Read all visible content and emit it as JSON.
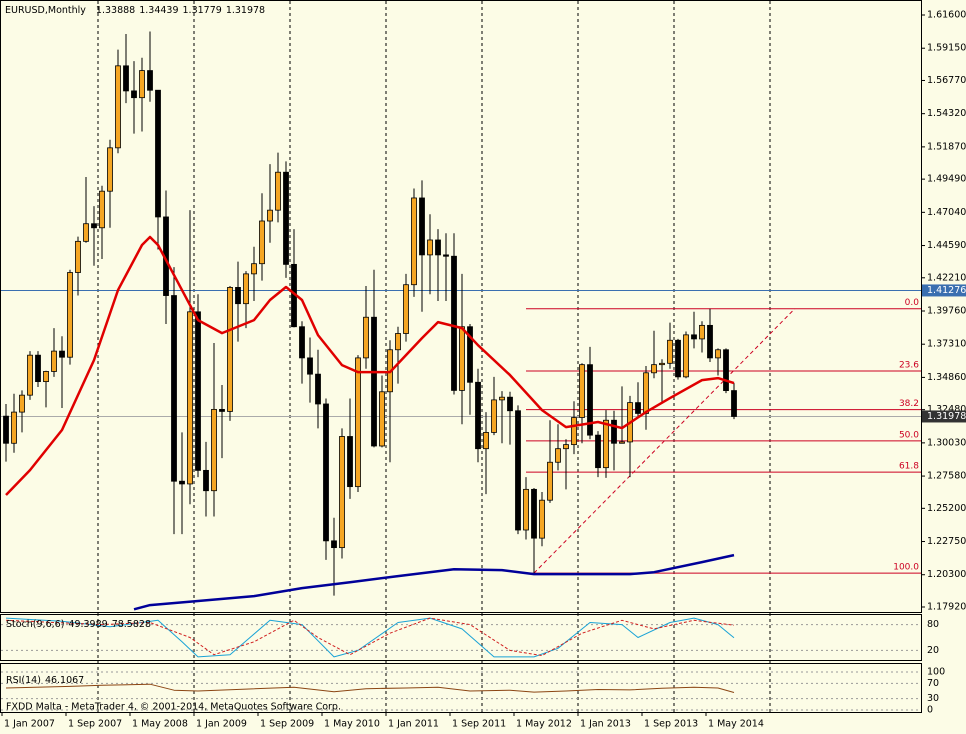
{
  "chart_data": [
    {
      "type": "candlestick",
      "title": "EURUSD,Monthly",
      "categories": [
        "1 Jan 2007",
        null,
        null,
        null,
        null,
        null,
        null,
        null,
        "1 Sep 2007",
        null,
        null,
        null,
        null,
        null,
        null,
        null,
        "1 May 2008",
        null,
        null,
        null,
        null,
        null,
        null,
        null,
        "1 Jan 2009",
        null,
        null,
        null,
        null,
        null,
        null,
        null,
        "1 Sep 2009",
        null,
        null,
        null,
        null,
        null,
        null,
        null,
        "1 May 2010",
        null,
        null,
        null,
        null,
        null,
        null,
        null,
        "1 Jan 2011",
        null,
        null,
        null,
        null,
        null,
        null,
        null,
        "1 Sep 2011",
        null,
        null,
        null,
        null,
        null,
        null,
        null,
        "1 May 2012",
        null,
        null,
        null,
        null,
        null,
        null,
        null,
        "1 Jan 2013",
        null,
        null,
        null,
        null,
        null,
        null,
        null,
        "1 Sep 2013",
        null,
        null,
        null,
        null,
        null,
        null,
        null,
        "1 May 2014",
        null,
        null,
        null
      ],
      "open": [
        1.32,
        1.3,
        1.323,
        1.3355,
        1.365,
        1.3455,
        1.353,
        1.368,
        1.3635,
        1.426,
        1.449,
        1.462,
        1.459,
        1.486,
        1.518,
        1.5785,
        1.56,
        1.555,
        1.575,
        1.5605,
        1.467,
        1.409,
        1.272,
        1.27,
        1.397,
        1.28,
        1.265,
        1.325,
        1.3235,
        1.415,
        1.403,
        1.425,
        1.4325,
        1.464,
        1.472,
        1.5,
        1.432,
        1.386,
        1.363,
        1.351,
        1.329,
        1.228,
        1.223,
        1.305,
        1.268,
        1.363,
        1.393,
        1.298,
        1.338,
        1.369,
        1.381,
        1.417,
        1.481,
        1.439,
        1.45,
        1.439,
        1.438,
        1.339,
        1.386,
        1.345,
        1.296,
        1.308,
        1.332,
        1.334,
        1.324,
        1.236,
        1.266,
        1.23,
        1.258,
        1.286,
        1.296,
        1.299,
        1.319,
        1.358,
        1.306,
        1.282,
        1.317,
        1.3,
        1.301,
        1.33,
        1.322,
        1.352,
        1.358,
        1.359,
        1.376,
        1.349,
        1.38,
        1.377,
        1.387,
        1.363,
        1.369,
        1.33888
      ],
      "high": [
        1.329,
        1.3365,
        1.339,
        1.368,
        1.368,
        1.3535,
        1.385,
        1.379,
        1.428,
        1.4525,
        1.4965,
        1.475,
        1.49,
        1.524,
        1.5905,
        1.602,
        1.582,
        1.5845,
        1.6038,
        1.5605,
        1.4865,
        1.43,
        1.308,
        1.472,
        1.41,
        1.301,
        1.374,
        1.343,
        1.416,
        1.434,
        1.427,
        1.445,
        1.4845,
        1.506,
        1.5145,
        1.508,
        1.458,
        1.39,
        1.378,
        1.369,
        1.333,
        1.245,
        1.311,
        1.333,
        1.365,
        1.416,
        1.428,
        1.35,
        1.376,
        1.386,
        1.425,
        1.488,
        1.494,
        1.469,
        1.458,
        1.455,
        1.455,
        1.425,
        1.388,
        1.355,
        1.323,
        1.349,
        1.3385,
        1.338,
        1.328,
        1.275,
        1.267,
        1.264,
        1.317,
        1.314,
        1.303,
        1.331,
        1.359,
        1.3711,
        1.309,
        1.3245,
        1.324,
        1.342,
        1.335,
        1.345,
        1.357,
        1.383,
        1.362,
        1.389,
        1.377,
        1.3825,
        1.397,
        1.39,
        1.3993,
        1.37,
        1.37,
        1.34439
      ],
      "low": [
        1.2865,
        1.293,
        1.308,
        1.332,
        1.3415,
        1.3265,
        1.349,
        1.326,
        1.358,
        1.409,
        1.448,
        1.431,
        1.436,
        1.459,
        1.514,
        1.551,
        1.5285,
        1.53,
        1.552,
        1.443,
        1.388,
        1.233,
        1.233,
        1.255,
        1.275,
        1.246,
        1.246,
        1.289,
        1.3165,
        1.375,
        1.385,
        1.405,
        1.42,
        1.448,
        1.463,
        1.422,
        1.3855,
        1.344,
        1.33,
        1.311,
        1.214,
        1.1876,
        1.215,
        1.259,
        1.264,
        1.355,
        1.297,
        1.297,
        1.286,
        1.344,
        1.375,
        1.408,
        1.397,
        1.41,
        1.405,
        1.405,
        1.336,
        1.314,
        1.321,
        1.286,
        1.2625,
        1.306,
        1.3,
        1.299,
        1.233,
        1.229,
        1.2042,
        1.224,
        1.256,
        1.28,
        1.266,
        1.292,
        1.3,
        1.303,
        1.275,
        1.2745,
        1.28,
        1.3,
        1.275,
        1.32,
        1.31,
        1.348,
        1.33,
        1.355,
        1.347,
        1.348,
        1.37,
        1.367,
        1.36,
        1.35,
        1.337,
        1.31779
      ],
      "close": [
        1.3,
        1.323,
        1.3355,
        1.365,
        1.3455,
        1.353,
        1.368,
        1.3635,
        1.426,
        1.449,
        1.462,
        1.459,
        1.486,
        1.518,
        1.5785,
        1.56,
        1.555,
        1.575,
        1.5605,
        1.467,
        1.409,
        1.272,
        1.27,
        1.397,
        1.28,
        1.265,
        1.325,
        1.3235,
        1.415,
        1.403,
        1.425,
        1.4325,
        1.464,
        1.472,
        1.5,
        1.432,
        1.386,
        1.363,
        1.351,
        1.329,
        1.228,
        1.223,
        1.305,
        1.268,
        1.363,
        1.393,
        1.298,
        1.338,
        1.369,
        1.381,
        1.417,
        1.481,
        1.439,
        1.45,
        1.439,
        1.438,
        1.339,
        1.386,
        1.345,
        1.296,
        1.308,
        1.332,
        1.334,
        1.324,
        1.236,
        1.266,
        1.23,
        1.258,
        1.286,
        1.296,
        1.299,
        1.319,
        1.358,
        1.306,
        1.282,
        1.317,
        1.3,
        1.301,
        1.33,
        1.322,
        1.352,
        1.358,
        1.359,
        1.376,
        1.349,
        1.38,
        1.377,
        1.387,
        1.363,
        1.369,
        1.33888,
        1.31978
      ],
      "up_color": "#f5a623",
      "down_color": "#000000",
      "ylim": [
        1.1755,
        1.6256
      ],
      "yticks": [
        {
          "value": 1.616,
          "label": "1.61600"
        },
        {
          "value": 1.5915,
          "label": "1.59150"
        },
        {
          "value": 1.5677,
          "label": "1.56770"
        },
        {
          "value": 1.5432,
          "label": "1.54320"
        },
        {
          "value": 1.5187,
          "label": "1.51870"
        },
        {
          "value": 1.4949,
          "label": "1.49490"
        },
        {
          "value": 1.4704,
          "label": "1.47040"
        },
        {
          "value": 1.4459,
          "label": "1.44590"
        },
        {
          "value": 1.4221,
          "label": "1.42210"
        },
        {
          "value": 1.3976,
          "label": "1.39760"
        },
        {
          "value": 1.3731,
          "label": "1.37310"
        },
        {
          "value": 1.3486,
          "label": "1.34860"
        },
        {
          "value": 1.3248,
          "label": "1.32480"
        },
        {
          "value": 1.3003,
          "label": "1.30030"
        },
        {
          "value": 1.2758,
          "label": "1.27580"
        },
        {
          "value": 1.252,
          "label": "1.25200"
        },
        {
          "value": 1.2275,
          "label": "1.22750"
        },
        {
          "value": 1.203,
          "label": "1.20300"
        },
        {
          "value": 1.1792,
          "label": "1.17920"
        }
      ],
      "xgrid": [
        12,
        24,
        36,
        48,
        60,
        72,
        84,
        96
      ],
      "lines": [
        {
          "color": "#e00000",
          "width": 2.5,
          "x": [
            0,
            3,
            7,
            11,
            14,
            17,
            18,
            19,
            22,
            24,
            27,
            31,
            33,
            35,
            37,
            39,
            42,
            44,
            46,
            48,
            52,
            54,
            57,
            59,
            63,
            67,
            70,
            74,
            77,
            80,
            83,
            87,
            89,
            91
          ],
          "values": [
            1.2618,
            1.2802,
            1.3098,
            1.3614,
            1.413,
            1.4463,
            1.4522,
            1.4463,
            1.413,
            1.3909,
            1.3813,
            1.3909,
            1.4057,
            1.4153,
            1.4057,
            1.3798,
            1.3577,
            1.3525,
            1.3525,
            1.3525,
            1.3776,
            1.3894,
            1.385,
            1.3724,
            1.3503,
            1.3245,
            1.3119,
            1.3157,
            1.3112,
            1.323,
            1.3333,
            1.3466,
            1.3481,
            1.3444
          ]
        },
        {
          "color": "#000099",
          "width": 2.5,
          "x": [
            16,
            18,
            24,
            31,
            37,
            43,
            49,
            56,
            62,
            66,
            72,
            78,
            81,
            87,
            91
          ],
          "values": [
            1.1775,
            1.1806,
            1.1836,
            1.1872,
            1.1931,
            1.1975,
            1.202,
            1.2071,
            1.2064,
            1.2035,
            1.2035,
            1.2035,
            1.2049,
            1.2123,
            1.2175
          ]
        }
      ],
      "hline": {
        "value": 1.41276,
        "color": "#3a6fb0"
      },
      "fib": {
        "x_from": 65.5,
        "color": "#cc0022",
        "levels": [
          {
            "label": "0.0",
            "value": 1.3993
          },
          {
            "label": "23.6",
            "value": 1.3533
          },
          {
            "label": "38.2",
            "value": 1.3248
          },
          {
            "label": "50.0",
            "value": 1.3018
          },
          {
            "label": "61.8",
            "value": 1.2787
          },
          {
            "label": "100.0",
            "value": 1.2042
          }
        ]
      },
      "trendline": {
        "x": [
          66,
          98.6
        ],
        "values": [
          1.2042,
          1.3993
        ],
        "color": "#cc0022"
      }
    },
    {
      "type": "line",
      "title": "Stoch(9,6,6)",
      "ylim": [
        0,
        100
      ],
      "yticks": [
        80,
        20
      ],
      "series": [
        {
          "color": "#1aa3d6",
          "x": [
            0,
            7,
            13,
            19,
            22,
            24,
            28,
            33,
            37,
            41,
            44,
            49,
            53,
            57,
            61,
            66,
            69,
            73,
            77,
            79,
            83,
            86,
            89,
            91
          ],
          "values": [
            95,
            88,
            75,
            90,
            40,
            5,
            10,
            90,
            80,
            5,
            20,
            85,
            95,
            70,
            5,
            5,
            25,
            85,
            80,
            50,
            85,
            95,
            80,
            49.3989
          ]
        },
        {
          "color": "#d02020",
          "dashed": true,
          "x": [
            0,
            12,
            18,
            23,
            26,
            31,
            36,
            39,
            43,
            48,
            53,
            58,
            63,
            67,
            72,
            77,
            81,
            86,
            91
          ],
          "values": [
            90,
            80,
            85,
            50,
            10,
            40,
            90,
            50,
            10,
            60,
            95,
            80,
            20,
            8,
            60,
            90,
            70,
            90,
            78.5828
          ]
        }
      ]
    },
    {
      "type": "line",
      "title": "RSI(14)",
      "ylim": [
        0,
        100
      ],
      "yticks": [
        100,
        70,
        30,
        0
      ],
      "series": [
        {
          "color": "#8b4513",
          "x": [
            0,
            8,
            12,
            18,
            21,
            24,
            30,
            36,
            41,
            45,
            50,
            54,
            58,
            63,
            66,
            70,
            74,
            78,
            82,
            86,
            89,
            91
          ],
          "values": [
            58,
            62,
            65,
            68,
            52,
            50,
            55,
            60,
            48,
            56,
            58,
            60,
            50,
            52,
            47,
            50,
            54,
            53,
            57,
            60,
            58,
            46.1067
          ]
        }
      ]
    }
  ],
  "footer": "FXDD Malta - MetaTrader 4, © 2001-2014, MetaQuotes Software Corp."
}
